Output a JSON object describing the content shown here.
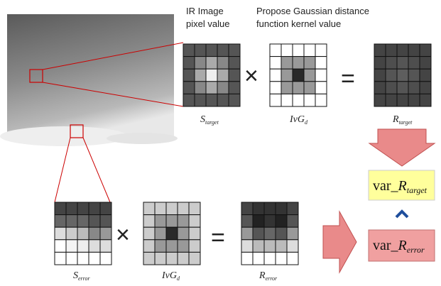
{
  "top_captions": [
    {
      "lines": [
        "IR Image",
        "pixel value"
      ]
    },
    {
      "lines": [
        "Propose Gaussian distance",
        "function kernel value"
      ]
    }
  ],
  "top_row": {
    "matrices": [
      {
        "main": "S",
        "sub": "target"
      },
      {
        "main": "IvG",
        "sub": "d"
      },
      {
        "main": "R",
        "sub": "target"
      }
    ],
    "operators": [
      "×",
      "="
    ]
  },
  "bottom_row": {
    "matrices": [
      {
        "main": "S",
        "sub": "error"
      },
      {
        "main": "IvG",
        "sub": "d"
      },
      {
        "main": "R",
        "sub": "error"
      }
    ],
    "operators": [
      "×",
      "="
    ]
  },
  "results": [
    {
      "prefix": "var_",
      "main": "R",
      "sub": "target"
    },
    {
      "prefix": "var_",
      "main": "R",
      "sub": "error"
    }
  ]
}
